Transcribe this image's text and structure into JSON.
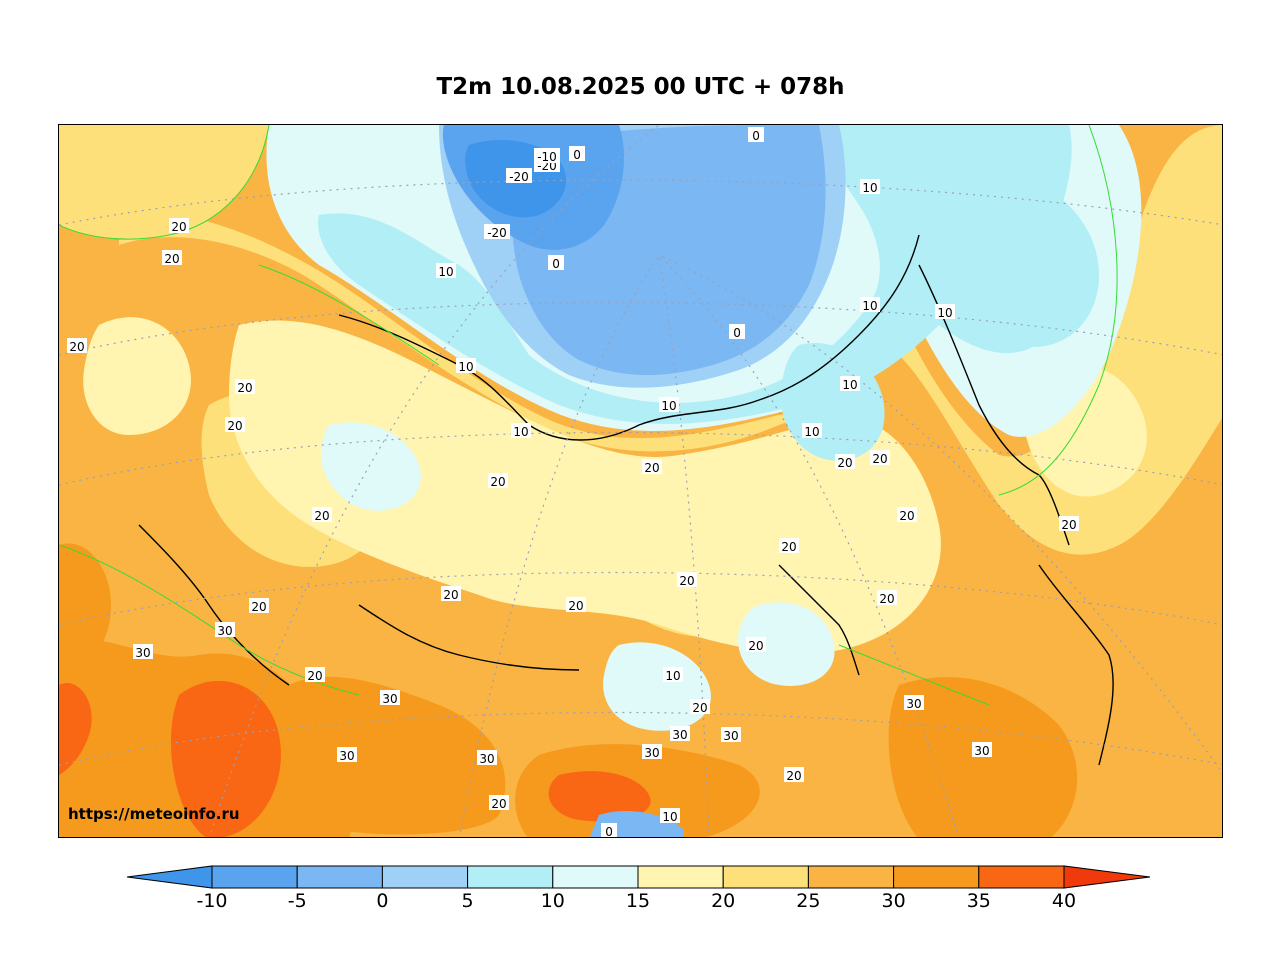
{
  "title": "T2m 10.08.2025 00 UTC + 078h",
  "watermark": "https://meteoinfo.ru",
  "colorbar": {
    "ticks": [
      "-10",
      "-5",
      "0",
      "5",
      "10",
      "15",
      "20",
      "25",
      "30",
      "35",
      "40"
    ],
    "bins": [
      {
        "from": -15,
        "to": -10,
        "color": "#3f95ea"
      },
      {
        "from": -10,
        "to": -5,
        "color": "#5aa3ee"
      },
      {
        "from": -5,
        "to": 0,
        "color": "#7bb7f2"
      },
      {
        "from": 0,
        "to": 5,
        "color": "#9fd0f6"
      },
      {
        "from": 5,
        "to": 10,
        "color": "#b2eef6"
      },
      {
        "from": 10,
        "to": 15,
        "color": "#e0f9f9"
      },
      {
        "from": 15,
        "to": 20,
        "color": "#fff5b0"
      },
      {
        "from": 20,
        "to": 25,
        "color": "#fde07a"
      },
      {
        "from": 25,
        "to": 30,
        "color": "#f9b443"
      },
      {
        "from": 30,
        "to": 35,
        "color": "#f59a1c"
      },
      {
        "from": 35,
        "to": 40,
        "color": "#f96614"
      },
      {
        "from": 40,
        "to": 45,
        "color": "#f03a0c"
      }
    ]
  },
  "contour_labels": [
    "20",
    "20",
    "20",
    "20",
    "20",
    "20",
    "20",
    "20",
    "20",
    "20",
    "20",
    "20",
    "20",
    "20",
    "20",
    "20",
    "20",
    "20",
    "20",
    "20",
    "20",
    "20",
    "20",
    "10",
    "10",
    "10",
    "10",
    "10",
    "10",
    "10",
    "10",
    "10",
    "10",
    "10",
    "0",
    "0",
    "0",
    "0",
    "0",
    "-20",
    "-20",
    "-20",
    "-10",
    "30",
    "30",
    "30",
    "30",
    "30",
    "30",
    "30",
    "30",
    "30",
    "30"
  ]
}
